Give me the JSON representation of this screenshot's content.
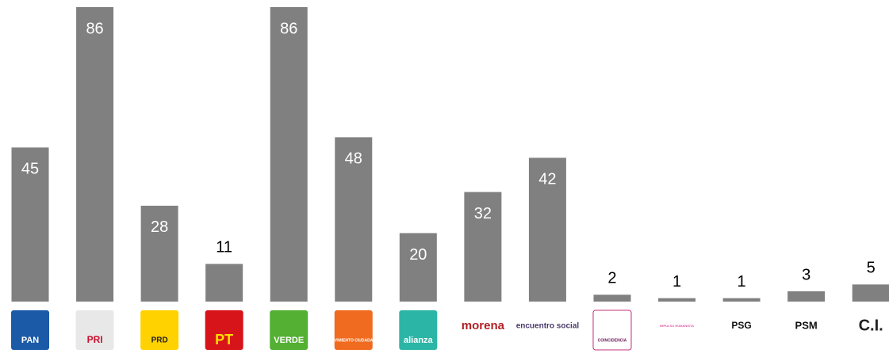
{
  "chart_data": {
    "type": "bar",
    "categories": [
      "PAN",
      "PRI",
      "PRD",
      "PT",
      "VERDE",
      "MOVIMIENTO CIUDADANO",
      "alianza",
      "morena",
      "encuentro social",
      "COINCIDENCIA",
      "IMPULSO HUMANISTA",
      "PSG",
      "PSM",
      "C.I."
    ],
    "values": [
      45,
      86,
      28,
      11,
      86,
      48,
      20,
      32,
      42,
      2,
      1,
      1,
      3,
      5
    ],
    "color": "#808080",
    "ylim": [
      0,
      86
    ]
  }
}
